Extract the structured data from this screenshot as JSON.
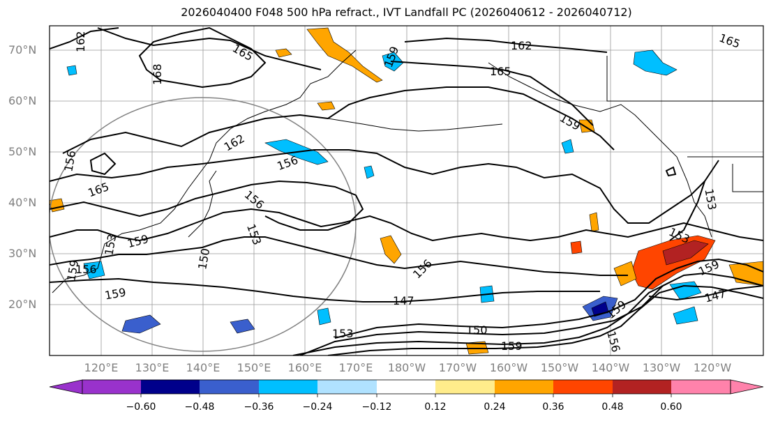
{
  "title": "2026040400 F048 500 hPa refract., IVT Landfall PC (2026040612 - 2026040712)",
  "lat_labels": [
    "70°N",
    "60°N",
    "50°N",
    "40°N",
    "30°N",
    "20°N"
  ],
  "lon_labels": [
    "120°E",
    "130°E",
    "140°E",
    "150°E",
    "160°E",
    "170°E",
    "180°W",
    "170°W",
    "160°W",
    "150°W",
    "140°W",
    "130°W",
    "120°W"
  ],
  "contour_labels": [
    "162",
    "165",
    "168",
    "159",
    "162",
    "165",
    "162",
    "156",
    "156",
    "165",
    "159",
    "156",
    "159",
    "153",
    "153",
    "156",
    "150",
    "147",
    "150",
    "153",
    "159",
    "156",
    "153",
    "159",
    "147",
    "159",
    "156",
    "165",
    "153",
    "159",
    "159"
  ],
  "colorbar": {
    "ticks": [
      "−0.60",
      "−0.48",
      "−0.36",
      "−0.24",
      "−0.12",
      "0.12",
      "0.24",
      "0.36",
      "0.48",
      "0.60"
    ],
    "colors": [
      "#9932cc",
      "#00008b",
      "#3a5fcd",
      "#00bfff",
      "#b0e2ff",
      "#ffffff",
      "#ffec8b",
      "#ffa500",
      "#ff4500",
      "#b22222",
      "#ff82ab"
    ]
  }
}
